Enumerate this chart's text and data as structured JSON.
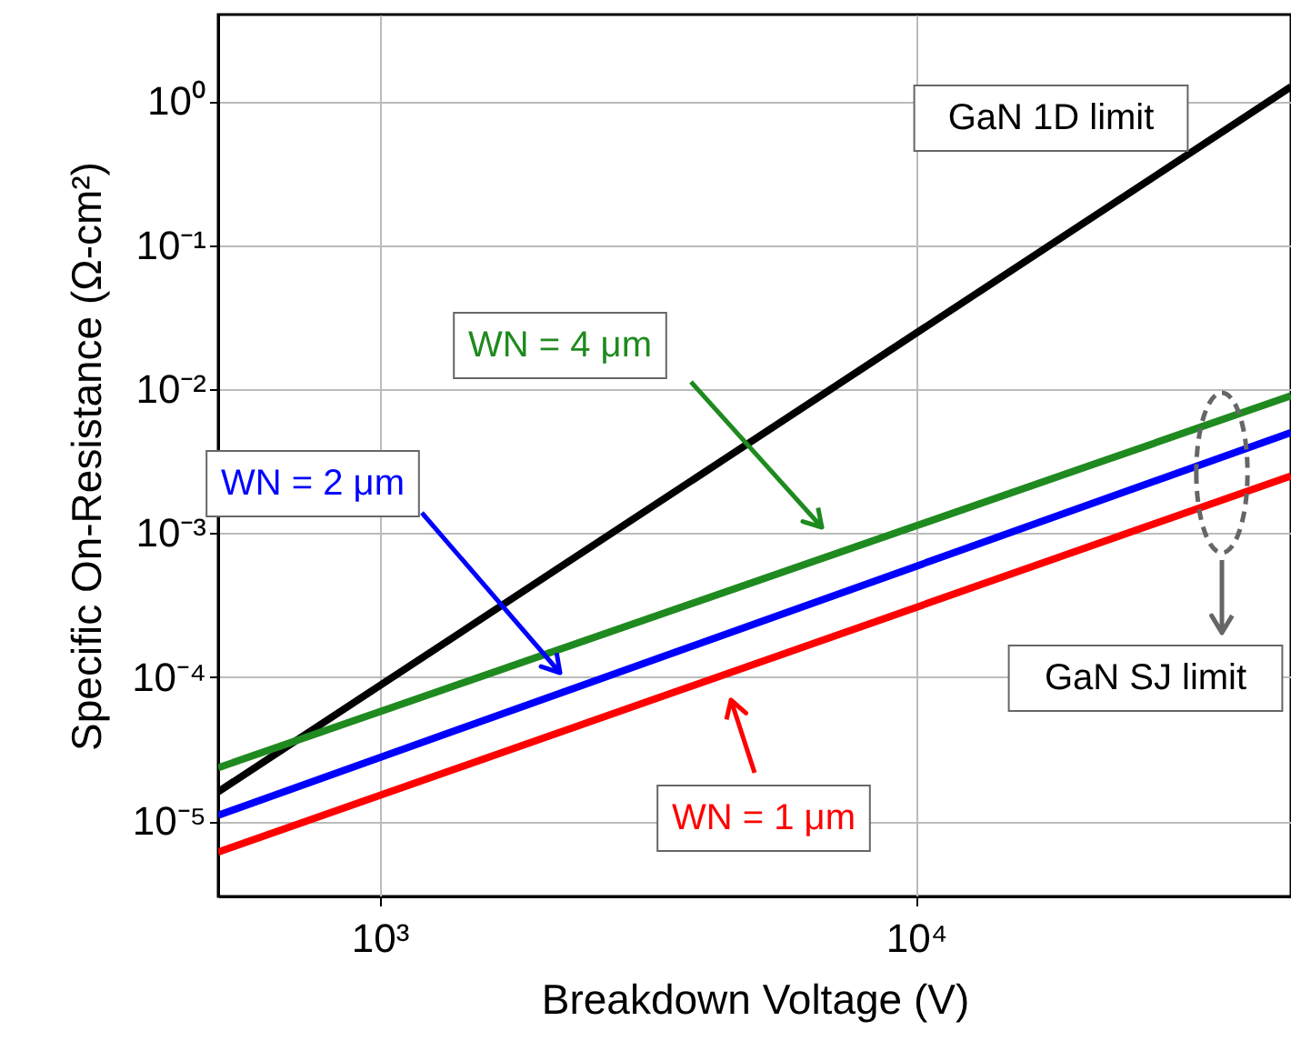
{
  "chart_data": {
    "type": "line",
    "xlabel": "Breakdown Voltage (V)",
    "ylabel": "Specific On-Resistance (Ω-cm²)",
    "xlim": [
      500,
      50000
    ],
    "ylim": [
      3e-06,
      4
    ],
    "xticks": [
      {
        "value": 1000,
        "label": "10³"
      },
      {
        "value": 10000,
        "label": "10⁴"
      }
    ],
    "yticks": [
      {
        "value": 1,
        "label": "10⁰"
      },
      {
        "value": 0.1,
        "label": "10⁻¹"
      },
      {
        "value": 0.01,
        "label": "10⁻²"
      },
      {
        "value": 0.001,
        "label": "10⁻³"
      },
      {
        "value": 0.0001,
        "label": "10⁻⁴"
      },
      {
        "value": 1e-05,
        "label": "10⁻⁵"
      }
    ],
    "log": "xy",
    "grid": true,
    "line_style": "solid",
    "marker": "none",
    "x": [
      500,
      50000
    ],
    "series": [
      {
        "name": "GaN 1D limit",
        "color": "#000000",
        "values": [
          1.6e-05,
          1.26
        ]
      },
      {
        "name": "WN = 4 μm",
        "color": "#1f8a1f",
        "values": [
          2.35e-05,
          0.009
        ]
      },
      {
        "name": "WN = 2 μm",
        "color": "#0000ff",
        "values": [
          1.1e-05,
          0.005
        ]
      },
      {
        "name": "WN = 1 μm",
        "color": "#ff0000",
        "values": [
          6.1e-06,
          0.0025
        ]
      }
    ],
    "annotations": [
      "GaN SJ limit"
    ]
  }
}
